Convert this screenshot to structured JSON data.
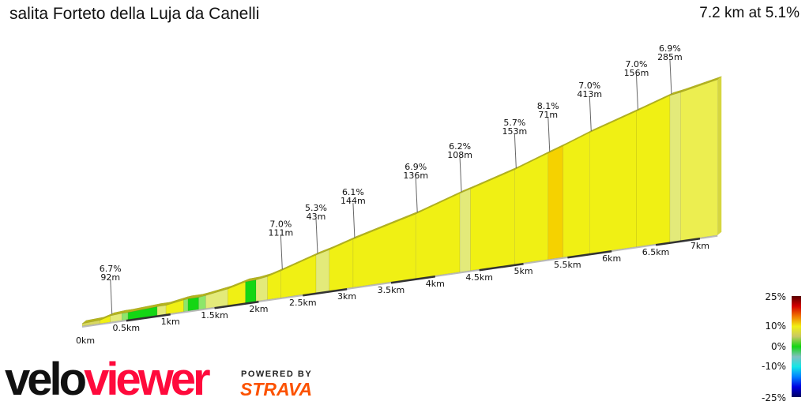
{
  "header": {
    "title": "salita Forteto della Luja da Canelli",
    "summary": "7.2 km at 5.1%"
  },
  "chart_data": {
    "type": "area",
    "title": "salita Forteto della Luja da Canelli",
    "xlabel": "",
    "ylabel": "",
    "x_unit": "km",
    "x_ticks": [
      "0km",
      "0.5km",
      "1km",
      "1.5km",
      "2km",
      "2.5km",
      "3km",
      "3.5km",
      "4km",
      "4.5km",
      "5km",
      "5.5km",
      "6km",
      "6.5km",
      "7km"
    ],
    "profile": [
      {
        "km": 0,
        "elev": 0,
        "color": "#d8d860"
      },
      {
        "km": 0.2,
        "elev": 2,
        "color": "#f0f014"
      },
      {
        "km": 0.32,
        "elev": 9,
        "color": "#e3ea7a"
      },
      {
        "km": 0.45,
        "elev": 11,
        "color": "#8de66a"
      },
      {
        "km": 0.52,
        "elev": 11,
        "color": "#14d614"
      },
      {
        "km": 0.85,
        "elev": 15,
        "color": "#e3ea7a"
      },
      {
        "km": 0.95,
        "elev": 15,
        "color": "#f0f014"
      },
      {
        "km": 1.15,
        "elev": 22,
        "color": "#8de66a"
      },
      {
        "km": 1.2,
        "elev": 23,
        "color": "#14d614"
      },
      {
        "km": 1.32,
        "elev": 23,
        "color": "#8de66a"
      },
      {
        "km": 1.4,
        "elev": 25,
        "color": "#e3ea7a"
      },
      {
        "km": 1.65,
        "elev": 33,
        "color": "#f0f014"
      },
      {
        "km": 1.85,
        "elev": 44,
        "color": "#14d614"
      },
      {
        "km": 1.97,
        "elev": 45,
        "color": "#e3ea7a"
      },
      {
        "km": 2.1,
        "elev": 49,
        "color": "#f0f014"
      },
      {
        "km": 2.25,
        "elev": 58,
        "color": "#f0f014"
      },
      {
        "km": 2.65,
        "elev": 84,
        "color": "#e3ea7a"
      },
      {
        "km": 2.8,
        "elev": 92,
        "color": "#f0f014"
      },
      {
        "km": 3.07,
        "elev": 109,
        "color": "#f0f014"
      },
      {
        "km": 3.78,
        "elev": 148,
        "color": "#f0f014"
      },
      {
        "km": 4.28,
        "elev": 182,
        "color": "#e3ea7a"
      },
      {
        "km": 4.4,
        "elev": 189,
        "color": "#f0f014"
      },
      {
        "km": 4.9,
        "elev": 220,
        "color": "#f0f014"
      },
      {
        "km": 5.28,
        "elev": 248,
        "color": "#f5d200"
      },
      {
        "km": 5.45,
        "elev": 260,
        "color": "#f0f014"
      },
      {
        "km": 5.75,
        "elev": 283,
        "color": "#f0f014"
      },
      {
        "km": 6.28,
        "elev": 318,
        "color": "#f0f014"
      },
      {
        "km": 6.66,
        "elev": 344,
        "color": "#e3ea7a"
      },
      {
        "km": 6.78,
        "elev": 348,
        "color": "#ecee50"
      },
      {
        "km": 7.2,
        "elev": 366,
        "color": "#ecee50"
      }
    ],
    "annotations": [
      {
        "km": 0.32,
        "grade": "6.7%",
        "length": "92m"
      },
      {
        "km": 2.25,
        "grade": "7.0%",
        "length": "111m"
      },
      {
        "km": 2.65,
        "grade": "5.3%",
        "length": "43m"
      },
      {
        "km": 3.07,
        "grade": "6.1%",
        "length": "144m"
      },
      {
        "km": 3.78,
        "grade": "6.9%",
        "length": "136m"
      },
      {
        "km": 4.28,
        "grade": "6.2%",
        "length": "108m"
      },
      {
        "km": 4.9,
        "grade": "5.7%",
        "length": "153m"
      },
      {
        "km": 5.28,
        "grade": "8.1%",
        "length": "71m"
      },
      {
        "km": 5.75,
        "grade": "7.0%",
        "length": "413m"
      },
      {
        "km": 6.28,
        "grade": "7.0%",
        "length": "156m"
      },
      {
        "km": 6.66,
        "grade": "6.9%",
        "length": "285m"
      }
    ],
    "legend": {
      "ticks": [
        "25%",
        "10%",
        "0%",
        "-10%",
        "-25%"
      ],
      "colors": [
        "#5a0000",
        "#d40000",
        "#f07800",
        "#f0f014",
        "#c8c864",
        "#14d614",
        "#80c0c0",
        "#14e6e6",
        "#0080ff",
        "#0000e0",
        "#000060"
      ]
    }
  },
  "footer": {
    "logo_a": "velo",
    "logo_b": "viewer",
    "powered": "POWERED BY",
    "strava": "STRAVA"
  }
}
